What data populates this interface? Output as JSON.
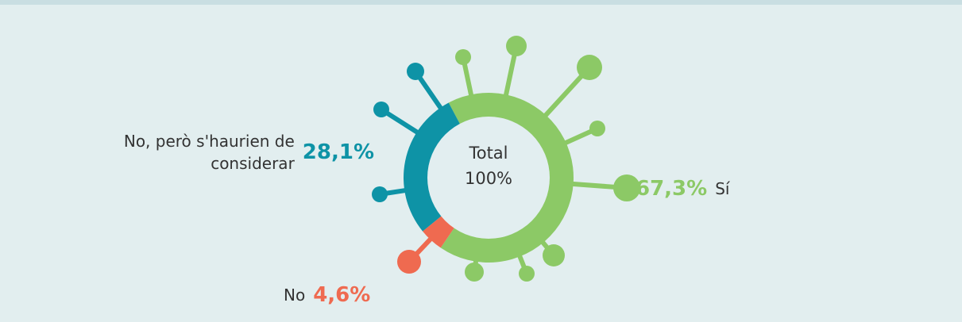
{
  "chart_data": {
    "type": "donut",
    "categories": [
      "Sí",
      "No",
      "No, però s'haurien de considerar"
    ],
    "values": [
      67.3,
      4.6,
      28.1
    ],
    "value_labels": [
      "67,3%",
      "4,6%",
      "28,1%"
    ],
    "colors": [
      "#8cc966",
      "#ef6a50",
      "#0e93a6"
    ],
    "center_label": {
      "title": "Total",
      "value": "100%"
    }
  }
}
